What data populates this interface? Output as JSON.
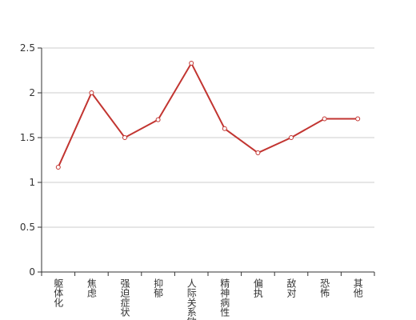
{
  "chart_data": {
    "type": "line",
    "categories": [
      "躯体化",
      "焦虑",
      "强迫症状",
      "抑郁",
      "人际关系敏感",
      "精神病性",
      "偏执",
      "敌对",
      "恐怖",
      "其他"
    ],
    "values": [
      1.17,
      2,
      1.5,
      1.7,
      2.33,
      1.6,
      1.33,
      1.5,
      1.71,
      1.71
    ],
    "color": "#c23531",
    "ylim": [
      0,
      2.5
    ],
    "yticks": [
      0,
      0.5,
      1,
      1.5,
      2,
      2.5
    ],
    "grid": true
  }
}
